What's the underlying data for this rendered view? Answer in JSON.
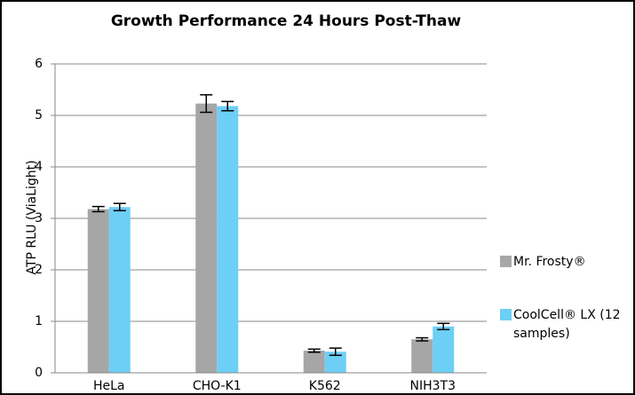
{
  "chart_data": {
    "type": "bar",
    "title": "Growth Performance 24 Hours Post-Thaw",
    "y_label": "ATP RLU (ViaLight)",
    "categories": [
      "HeLa",
      "CHO-K1",
      "K562",
      "NIH3T3"
    ],
    "series": [
      {
        "name": "Mr. Frosty®",
        "color": "#a6a6a6",
        "values": [
          3.18,
          5.23,
          0.43,
          0.65
        ],
        "errors": [
          0.05,
          0.17,
          0.03,
          0.03
        ]
      },
      {
        "name": "CoolCell® LX (12 samples)",
        "color": "#6dcff6",
        "values": [
          3.22,
          5.18,
          0.41,
          0.9
        ],
        "errors": [
          0.07,
          0.09,
          0.07,
          0.06
        ]
      }
    ],
    "ylim": [
      0,
      6
    ],
    "yticks": [
      0,
      1,
      2,
      3,
      4,
      5,
      6
    ],
    "grid": true,
    "legend": "right"
  }
}
